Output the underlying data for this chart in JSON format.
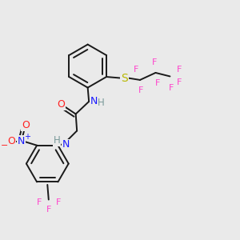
{
  "bg_color": "#eaeaea",
  "colors": {
    "C": "#1a1a1a",
    "N": "#1a1aff",
    "O": "#ff2222",
    "S": "#b8b800",
    "F": "#ff44cc",
    "H": "#7a9a9a"
  },
  "bw": 1.4
}
